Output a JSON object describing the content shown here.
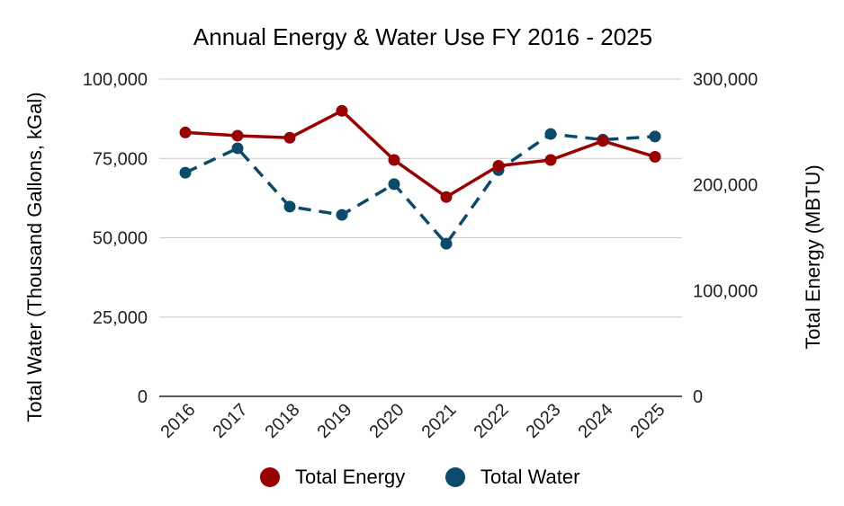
{
  "chart_data": {
    "type": "line",
    "title": "Annual Energy & Water Use FY 2016 - 2025",
    "categories": [
      "2016",
      "2017",
      "2018",
      "2019",
      "2020",
      "2021",
      "2022",
      "2023",
      "2024",
      "2025"
    ],
    "y_left": {
      "label": "Total Water (Thousand Gallons, kGal)",
      "range": [
        0,
        100000
      ],
      "ticks": [
        0,
        25000,
        50000,
        75000,
        100000
      ],
      "tick_labels": [
        "0",
        "25,000",
        "50,000",
        "75,000",
        "100,000"
      ]
    },
    "y_right": {
      "label": "Total Energy (MBTU)",
      "range": [
        0,
        300000
      ],
      "ticks": [
        0,
        100000,
        200000,
        300000
      ],
      "tick_labels": [
        "0",
        "100,000",
        "200,000",
        "300,000"
      ]
    },
    "series": [
      {
        "name": "Total Energy",
        "axis": "right",
        "color": "#990000",
        "line_style": "solid",
        "values": [
          249500,
          246500,
          244500,
          270000,
          223500,
          188500,
          218000,
          223500,
          241500,
          226500
        ]
      },
      {
        "name": "Total Water",
        "axis": "left",
        "color": "#0b4a6b",
        "line_style": "dashed",
        "values": [
          70500,
          78200,
          59800,
          57200,
          66900,
          48100,
          71300,
          82700,
          80900,
          81900
        ]
      }
    ],
    "grid": true,
    "legend": "bottom"
  }
}
